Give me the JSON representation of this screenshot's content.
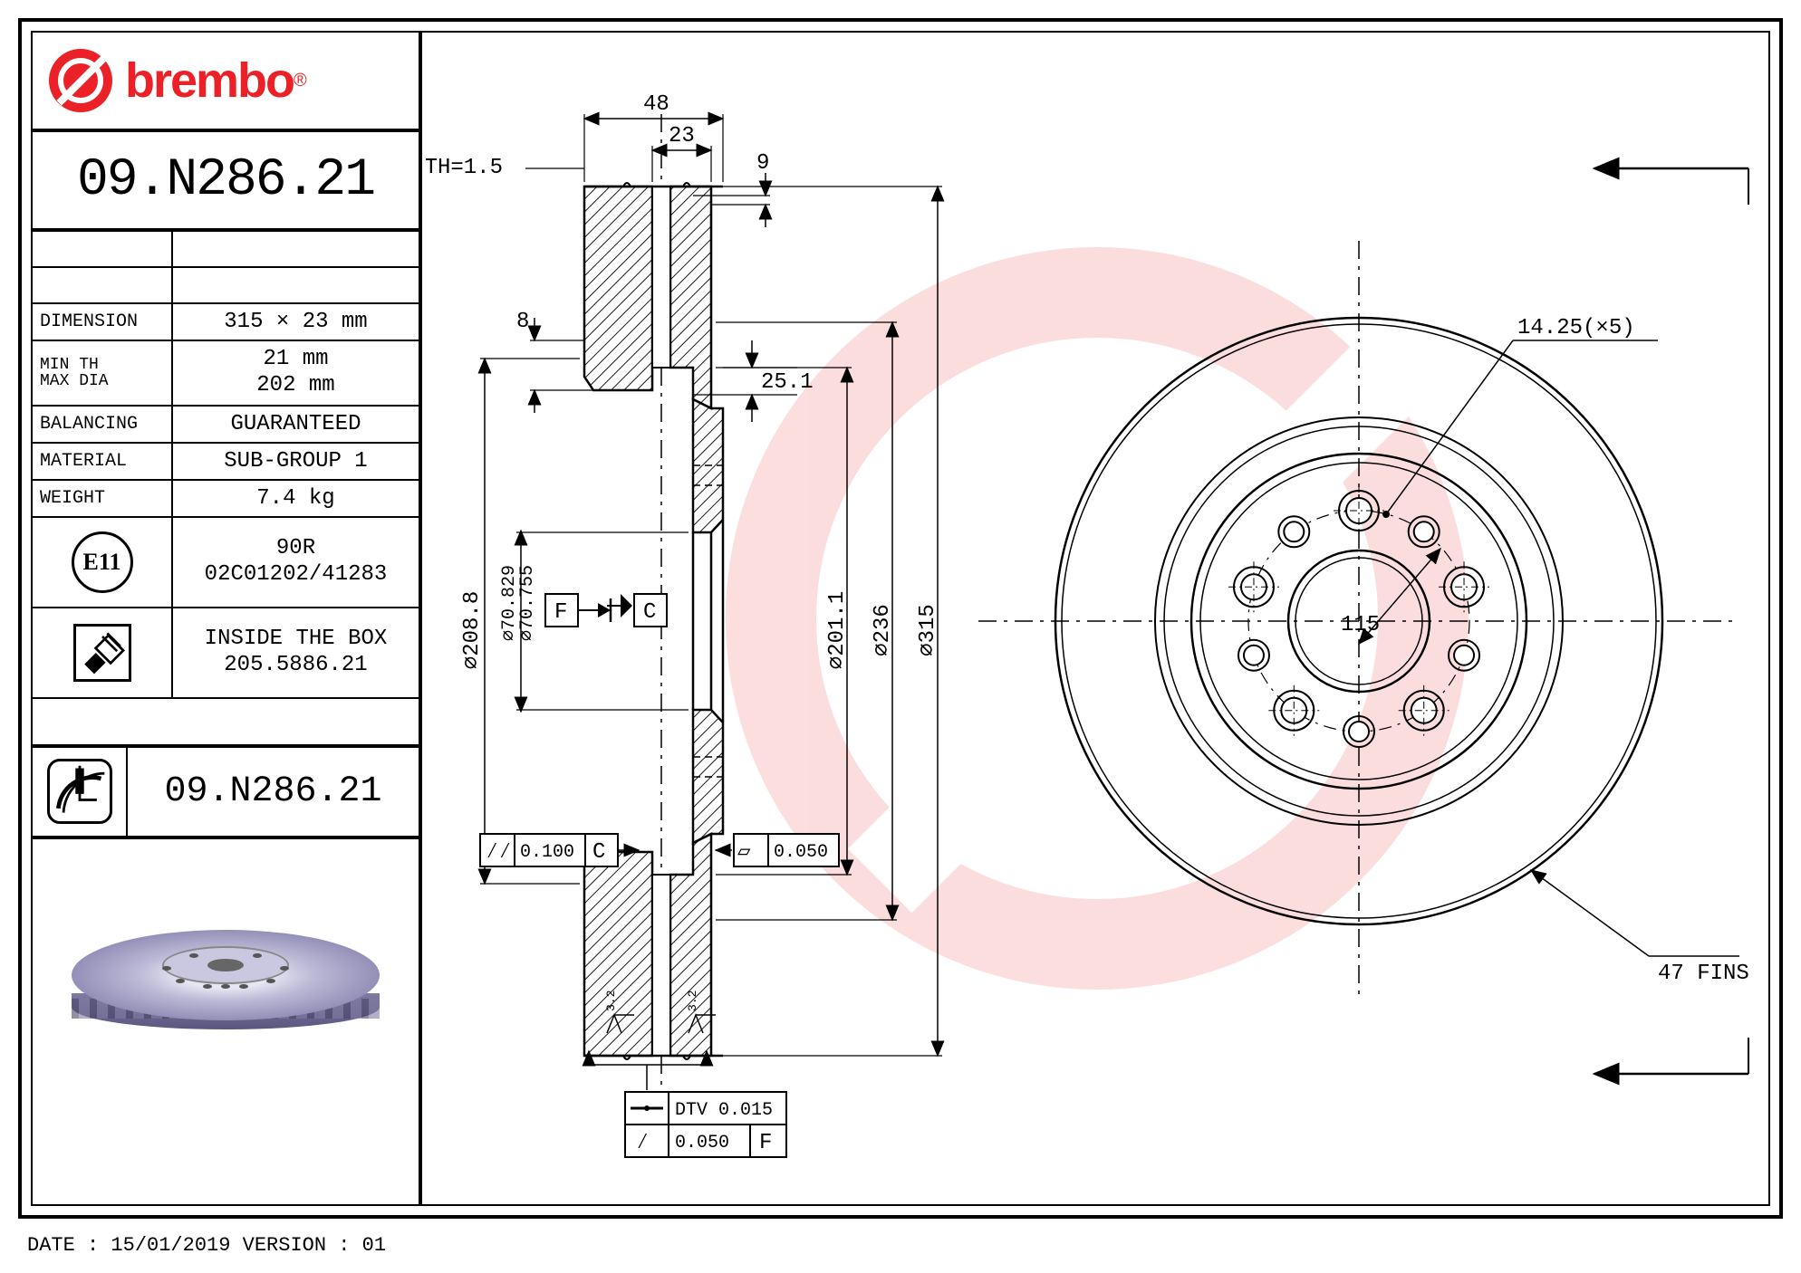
{
  "brand": {
    "name": "brembo",
    "color": "#ec2127"
  },
  "part_number": "09.N286.21",
  "specs": {
    "dimension_label": "DIMENSION",
    "dimension_value": "315 × 23  mm",
    "minth_label1": "MIN TH",
    "minth_label2": "MAX DIA",
    "minth_value1": "21  mm",
    "minth_value2": "202  mm",
    "balancing_label": "BALANCING",
    "balancing_value": "GUARANTEED",
    "material_label": "MATERIAL",
    "material_value": "SUB-GROUP 1",
    "weight_label": "WEIGHT",
    "weight_value": "7.4  kg",
    "cert_mark": "E11",
    "cert_value1": "90R",
    "cert_value2": "02C01202/41283",
    "box_label": "INSIDE THE BOX",
    "box_value": "205.5886.21"
  },
  "drawing": {
    "dims": {
      "d48": "48",
      "d23": "23",
      "th": "△TH=1.5",
      "d9": "9",
      "d8": "8",
      "d25_1": "25.1",
      "phi208_8": "⌀208.8",
      "phi70_829": "⌀70.829",
      "phi70_755": "⌀70.755",
      "phi201_1": "⌀201.1",
      "phi236": "⌀236",
      "phi315": "⌀315",
      "phi115": "115",
      "bolt": "14.25(×5)",
      "fins": "47 FINS",
      "flat_0100": "0.100",
      "flat_c": "C",
      "flat_0050": "0.050",
      "dtv": "DTV 0.015",
      "flat_0050f": "0.050",
      "flat_f": "F",
      "datum_f": "F",
      "datum_c": "C",
      "ra32a": "3.2",
      "ra32b": "3.2"
    },
    "face_view": {
      "outer_r": 335,
      "swept_outer_r": 330,
      "swept_inner_r": 225,
      "hat_r": 180,
      "bore_r": 78,
      "bolt_circle_r": 122,
      "bolt_hole_r": 14,
      "aux_hole_r": 122,
      "aux_hole_size": 11,
      "bolt_count": 5,
      "aux_count": 5
    },
    "section_view": {
      "colors": {
        "hatch": "#000",
        "outline": "#000"
      }
    },
    "style": {
      "line_color": "#000000",
      "thin_width": 1.5,
      "thick_width": 2.5,
      "centerline_dash": "20 8 4 8",
      "hatch_color": "#000000",
      "watermark_color": "#ec2127",
      "watermark_opacity": 0.15,
      "background": "#ffffff"
    }
  },
  "footer": {
    "text": "DATE : 15/01/2019 VERSION : 01"
  },
  "disc_render": {
    "top_gradient": [
      "#e8e6f2",
      "#bcbad6",
      "#9490b8",
      "#726d98"
    ],
    "side_gradient": [
      "#7e7aa2",
      "#5b5680"
    ]
  }
}
